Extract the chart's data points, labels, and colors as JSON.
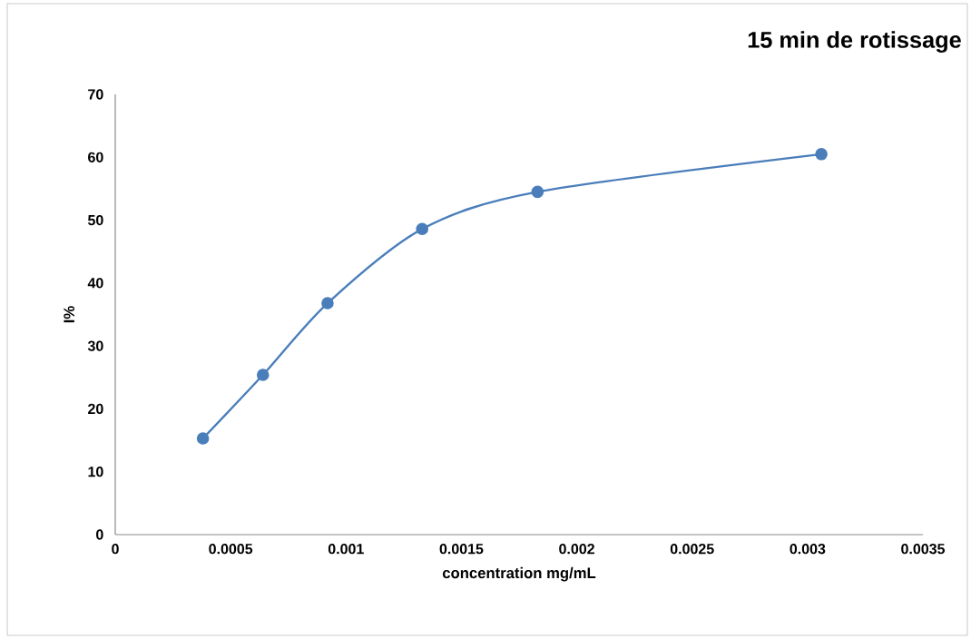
{
  "chart_data": {
    "type": "line",
    "title": "15 min de rotissage",
    "xlabel": "concentration mg/mL",
    "ylabel": "I%",
    "x": [
      0.00038,
      0.00064,
      0.00092,
      0.00133,
      0.00183,
      0.00306
    ],
    "series": [
      {
        "color": "#4a7ebb",
        "values": [
          15.3,
          25.4,
          36.8,
          48.6,
          54.5,
          60.5
        ]
      }
    ],
    "xlim": [
      0,
      0.0035
    ],
    "xticks": [
      0,
      0.0005,
      0.001,
      0.0015,
      0.002,
      0.0025,
      0.003,
      0.0035
    ],
    "ylim": [
      0,
      70
    ],
    "yticks": [
      0,
      10,
      20,
      30,
      40,
      50,
      60,
      70
    ],
    "grid": false,
    "marker": "circle",
    "line_style": "solid"
  }
}
